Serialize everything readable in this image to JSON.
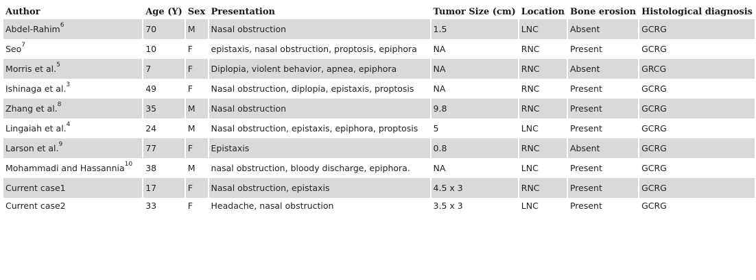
{
  "table": {
    "headers": [
      "Author",
      "Age (Y)",
      "Sex",
      "Presentation",
      "Tumor Size (cm)",
      "Location",
      "Bone erosion",
      "Histological diagnosis"
    ],
    "rows": [
      {
        "author": "Abdel-Rahim",
        "ref": "6",
        "age": "70",
        "sex": "M",
        "presentation": "Nasal obstruction",
        "size": "1.5",
        "location": "LNC",
        "bone": "Absent",
        "histology": "GCRG"
      },
      {
        "author": "Seo",
        "ref": "7",
        "age": "10",
        "sex": "F",
        "presentation": "epistaxis, nasal obstruction, proptosis, epiphora",
        "size": "NA",
        "location": "RNC",
        "bone": "Present",
        "histology": "GCRG"
      },
      {
        "author": "Morris et al.",
        "ref": "5",
        "age": "7",
        "sex": "F",
        "presentation": "Diplopia, violent behavior, apnea, epiphora",
        "size": "NA",
        "location": "RNC",
        "bone": "Absent",
        "histology": "GRCG"
      },
      {
        "author": "Ishinaga et al.",
        "ref": "3",
        "age": "49",
        "sex": "F",
        "presentation": "Nasal obstruction, diplopia, epistaxis, proptosis",
        "size": "NA",
        "location": "RNC",
        "bone": "Present",
        "histology": "GCRG"
      },
      {
        "author": "Zhang et al.",
        "ref": "8",
        "age": "35",
        "sex": "M",
        "presentation": "Nasal obstruction",
        "size": "9.8",
        "location": "RNC",
        "bone": "Present",
        "histology": "GCRG"
      },
      {
        "author": "Lingaiah et al.",
        "ref": "4",
        "age": "24",
        "sex": "M",
        "presentation": "Nasal obstruction, epistaxis, epiphora, proptosis",
        "size": "5",
        "location": "LNC",
        "bone": "Present",
        "histology": "GCRG"
      },
      {
        "author": "Larson et al.",
        "ref": "9",
        "age": "77",
        "sex": "F",
        "presentation": "Epistaxis",
        "size": "0.8",
        "location": "RNC",
        "bone": "Absent",
        "histology": "GCRG"
      },
      {
        "author": "Mohammadi and Hassannia",
        "ref": "10",
        "age": "38",
        "sex": "M",
        "presentation": "nasal obstruction, bloody discharge, epiphora.",
        "size": "NA",
        "location": "LNC",
        "bone": "Present",
        "histology": "GCRG"
      },
      {
        "author": "Current case1",
        "ref": "",
        "age": "17",
        "sex": "F",
        "presentation": "Nasal obstruction, epistaxis",
        "size": "4.5 x 3",
        "location": "RNC",
        "bone": "Present",
        "histology": "GCRG"
      },
      {
        "author": "Current case2",
        "ref": "",
        "age": "33",
        "sex": "F",
        "presentation": "Headache, nasal obstruction",
        "size": "3.5 x 3",
        "location": "LNC",
        "bone": "Present",
        "histology": "GCRG"
      }
    ]
  }
}
